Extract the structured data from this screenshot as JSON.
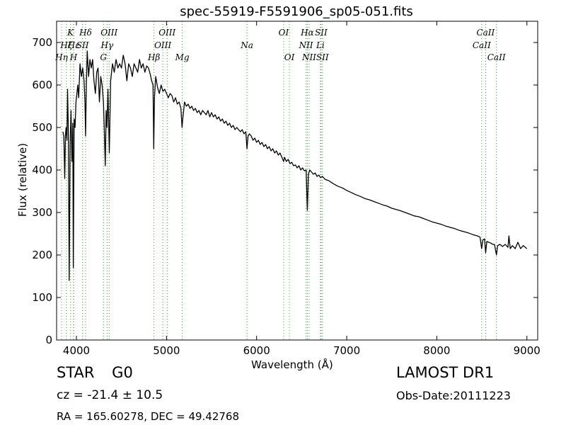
{
  "figure": {
    "title": "spec-55919-F5591906_sp05-051.fits",
    "object_class": "STAR",
    "subclass": "G0",
    "redshift_text": "cz = -21.4 ± 10.5",
    "coords_text": "RA = 165.60278, DEC = 49.42768",
    "survey": "LAMOST DR1",
    "obs_date": "Obs-Date:20111223"
  },
  "chart_data": {
    "type": "line",
    "title": "spec-55919-F5591906_sp05-051.fits",
    "xlabel": "Wavelength (Å)",
    "ylabel": "Flux (relative)",
    "xlim": [
      3780,
      9120
    ],
    "ylim": [
      0,
      750
    ],
    "xticks": [
      4000,
      5000,
      6000,
      7000,
      8000,
      9000
    ],
    "yticks": [
      0,
      100,
      200,
      300,
      400,
      500,
      600,
      700
    ],
    "grid": false,
    "line_color": "#000000",
    "marker_color": "#2ca02c",
    "series": [
      {
        "values": [
          [
            3850,
            490
          ],
          [
            3860,
            480
          ],
          [
            3870,
            380
          ],
          [
            3878,
            480
          ],
          [
            3885,
            500
          ],
          [
            3895,
            470
          ],
          [
            3902,
            590
          ],
          [
            3910,
            490
          ],
          [
            3920,
            140
          ],
          [
            3930,
            460
          ],
          [
            3940,
            540
          ],
          [
            3950,
            420
          ],
          [
            3960,
            510
          ],
          [
            3965,
            170
          ],
          [
            3975,
            520
          ],
          [
            3985,
            500
          ],
          [
            3995,
            560
          ],
          [
            4005,
            580
          ],
          [
            4015,
            600
          ],
          [
            4025,
            570
          ],
          [
            4040,
            650
          ],
          [
            4055,
            620
          ],
          [
            4070,
            640
          ],
          [
            4085,
            610
          ],
          [
            4095,
            560
          ],
          [
            4102,
            480
          ],
          [
            4110,
            600
          ],
          [
            4120,
            680
          ],
          [
            4135,
            620
          ],
          [
            4150,
            660
          ],
          [
            4165,
            640
          ],
          [
            4180,
            660
          ],
          [
            4195,
            610
          ],
          [
            4210,
            580
          ],
          [
            4225,
            630
          ],
          [
            4240,
            640
          ],
          [
            4255,
            560
          ],
          [
            4270,
            620
          ],
          [
            4285,
            600
          ],
          [
            4300,
            560
          ],
          [
            4310,
            490
          ],
          [
            4320,
            410
          ],
          [
            4330,
            540
          ],
          [
            4340,
            500
          ],
          [
            4350,
            590
          ],
          [
            4365,
            440
          ],
          [
            4380,
            610
          ],
          [
            4400,
            650
          ],
          [
            4420,
            630
          ],
          [
            4440,
            660
          ],
          [
            4460,
            640
          ],
          [
            4480,
            650
          ],
          [
            4500,
            640
          ],
          [
            4520,
            670
          ],
          [
            4540,
            650
          ],
          [
            4560,
            610
          ],
          [
            4580,
            650
          ],
          [
            4600,
            640
          ],
          [
            4620,
            620
          ],
          [
            4640,
            650
          ],
          [
            4660,
            640
          ],
          [
            4680,
            630
          ],
          [
            4700,
            660
          ],
          [
            4720,
            640
          ],
          [
            4740,
            650
          ],
          [
            4760,
            630
          ],
          [
            4780,
            645
          ],
          [
            4800,
            640
          ],
          [
            4820,
            625
          ],
          [
            4835,
            610
          ],
          [
            4850,
            600
          ],
          [
            4858,
            450
          ],
          [
            4866,
            570
          ],
          [
            4880,
            620
          ],
          [
            4900,
            595
          ],
          [
            4920,
            580
          ],
          [
            4940,
            600
          ],
          [
            4960,
            585
          ],
          [
            4980,
            590
          ],
          [
            5000,
            580
          ],
          [
            5020,
            570
          ],
          [
            5040,
            580
          ],
          [
            5060,
            575
          ],
          [
            5080,
            560
          ],
          [
            5100,
            570
          ],
          [
            5120,
            555
          ],
          [
            5140,
            560
          ],
          [
            5160,
            545
          ],
          [
            5172,
            500
          ],
          [
            5180,
            520
          ],
          [
            5190,
            540
          ],
          [
            5200,
            560
          ],
          [
            5220,
            550
          ],
          [
            5240,
            555
          ],
          [
            5260,
            545
          ],
          [
            5280,
            550
          ],
          [
            5300,
            540
          ],
          [
            5320,
            545
          ],
          [
            5340,
            535
          ],
          [
            5360,
            540
          ],
          [
            5380,
            530
          ],
          [
            5400,
            540
          ],
          [
            5420,
            535
          ],
          [
            5440,
            530
          ],
          [
            5460,
            540
          ],
          [
            5480,
            525
          ],
          [
            5500,
            535
          ],
          [
            5520,
            525
          ],
          [
            5540,
            530
          ],
          [
            5560,
            520
          ],
          [
            5580,
            525
          ],
          [
            5600,
            515
          ],
          [
            5620,
            520
          ],
          [
            5640,
            510
          ],
          [
            5660,
            515
          ],
          [
            5680,
            505
          ],
          [
            5700,
            510
          ],
          [
            5720,
            500
          ],
          [
            5740,
            505
          ],
          [
            5760,
            495
          ],
          [
            5780,
            500
          ],
          [
            5800,
            495
          ],
          [
            5820,
            490
          ],
          [
            5840,
            495
          ],
          [
            5860,
            485
          ],
          [
            5880,
            490
          ],
          [
            5893,
            450
          ],
          [
            5905,
            480
          ],
          [
            5920,
            485
          ],
          [
            5940,
            480
          ],
          [
            5960,
            470
          ],
          [
            5980,
            475
          ],
          [
            6000,
            465
          ],
          [
            6020,
            470
          ],
          [
            6040,
            460
          ],
          [
            6060,
            465
          ],
          [
            6080,
            455
          ],
          [
            6100,
            460
          ],
          [
            6120,
            450
          ],
          [
            6140,
            455
          ],
          [
            6160,
            445
          ],
          [
            6180,
            450
          ],
          [
            6200,
            440
          ],
          [
            6220,
            445
          ],
          [
            6240,
            435
          ],
          [
            6260,
            440
          ],
          [
            6280,
            430
          ],
          [
            6300,
            420
          ],
          [
            6310,
            430
          ],
          [
            6330,
            420
          ],
          [
            6350,
            425
          ],
          [
            6370,
            415
          ],
          [
            6390,
            418
          ],
          [
            6410,
            410
          ],
          [
            6430,
            412
          ],
          [
            6450,
            405
          ],
          [
            6470,
            410
          ],
          [
            6490,
            400
          ],
          [
            6510,
            405
          ],
          [
            6530,
            398
          ],
          [
            6550,
            400
          ],
          [
            6563,
            305
          ],
          [
            6575,
            390
          ],
          [
            6590,
            400
          ],
          [
            6610,
            395
          ],
          [
            6630,
            390
          ],
          [
            6650,
            393
          ],
          [
            6670,
            385
          ],
          [
            6690,
            388
          ],
          [
            6710,
            382
          ],
          [
            6730,
            385
          ],
          [
            6760,
            378
          ],
          [
            6800,
            375
          ],
          [
            6850,
            368
          ],
          [
            6900,
            362
          ],
          [
            6950,
            358
          ],
          [
            7000,
            352
          ],
          [
            7050,
            347
          ],
          [
            7100,
            342
          ],
          [
            7150,
            338
          ],
          [
            7200,
            333
          ],
          [
            7250,
            330
          ],
          [
            7300,
            326
          ],
          [
            7350,
            322
          ],
          [
            7400,
            318
          ],
          [
            7450,
            315
          ],
          [
            7500,
            310
          ],
          [
            7550,
            307
          ],
          [
            7600,
            304
          ],
          [
            7650,
            300
          ],
          [
            7700,
            296
          ],
          [
            7750,
            292
          ],
          [
            7800,
            290
          ],
          [
            7850,
            286
          ],
          [
            7900,
            282
          ],
          [
            7950,
            278
          ],
          [
            8000,
            275
          ],
          [
            8050,
            272
          ],
          [
            8100,
            268
          ],
          [
            8150,
            265
          ],
          [
            8200,
            262
          ],
          [
            8250,
            258
          ],
          [
            8300,
            255
          ],
          [
            8350,
            252
          ],
          [
            8400,
            248
          ],
          [
            8450,
            245
          ],
          [
            8480,
            242
          ],
          [
            8498,
            215
          ],
          [
            8510,
            235
          ],
          [
            8530,
            238
          ],
          [
            8542,
            205
          ],
          [
            8555,
            232
          ],
          [
            8575,
            230
          ],
          [
            8600,
            228
          ],
          [
            8620,
            225
          ],
          [
            8640,
            225
          ],
          [
            8662,
            200
          ],
          [
            8675,
            222
          ],
          [
            8700,
            225
          ],
          [
            8730,
            220
          ],
          [
            8760,
            225
          ],
          [
            8790,
            218
          ],
          [
            8800,
            245
          ],
          [
            8815,
            215
          ],
          [
            8840,
            222
          ],
          [
            8870,
            215
          ],
          [
            8900,
            230
          ],
          [
            8930,
            215
          ],
          [
            8960,
            222
          ],
          [
            9000,
            215
          ]
        ]
      }
    ],
    "line_markers": [
      {
        "label": "Hη",
        "x": 3835,
        "tier": 3
      },
      {
        "label": "Hζ",
        "x": 3889,
        "tier": 2
      },
      {
        "label": "K",
        "x": 3934,
        "tier": 1
      },
      {
        "label": "H",
        "x": 3968,
        "tier": 3
      },
      {
        "label": "Hε",
        "x": 3970,
        "tier": 2
      },
      {
        "label": "SII",
        "x": 4068,
        "tier": 2
      },
      {
        "label": "Hδ",
        "x": 4102,
        "tier": 1
      },
      {
        "label": "G",
        "x": 4300,
        "tier": 3
      },
      {
        "label": "Hγ",
        "x": 4340,
        "tier": 2
      },
      {
        "label": "OIII",
        "x": 4363,
        "tier": 1
      },
      {
        "label": "Hβ",
        "x": 4861,
        "tier": 3
      },
      {
        "label": "OIII",
        "x": 4959,
        "tier": 2
      },
      {
        "label": "OIII",
        "x": 5007,
        "tier": 1
      },
      {
        "label": "Mg",
        "x": 5175,
        "tier": 3
      },
      {
        "label": "Na",
        "x": 5893,
        "tier": 2
      },
      {
        "label": "OI",
        "x": 6300,
        "tier": 1
      },
      {
        "label": "OI",
        "x": 6364,
        "tier": 3
      },
      {
        "label": "NII",
        "x": 6548,
        "tier": 2
      },
      {
        "label": "Hα",
        "x": 6563,
        "tier": 1
      },
      {
        "label": "NII",
        "x": 6583,
        "tier": 3
      },
      {
        "label": "Li",
        "x": 6708,
        "tier": 2
      },
      {
        "label": "SII",
        "x": 6716,
        "tier": 1
      },
      {
        "label": "SII",
        "x": 6731,
        "tier": 3
      },
      {
        "label": "CaII",
        "x": 8498,
        "tier": 2
      },
      {
        "label": "CaII",
        "x": 8542,
        "tier": 1
      },
      {
        "label": "CaII",
        "x": 8662,
        "tier": 3
      }
    ]
  }
}
